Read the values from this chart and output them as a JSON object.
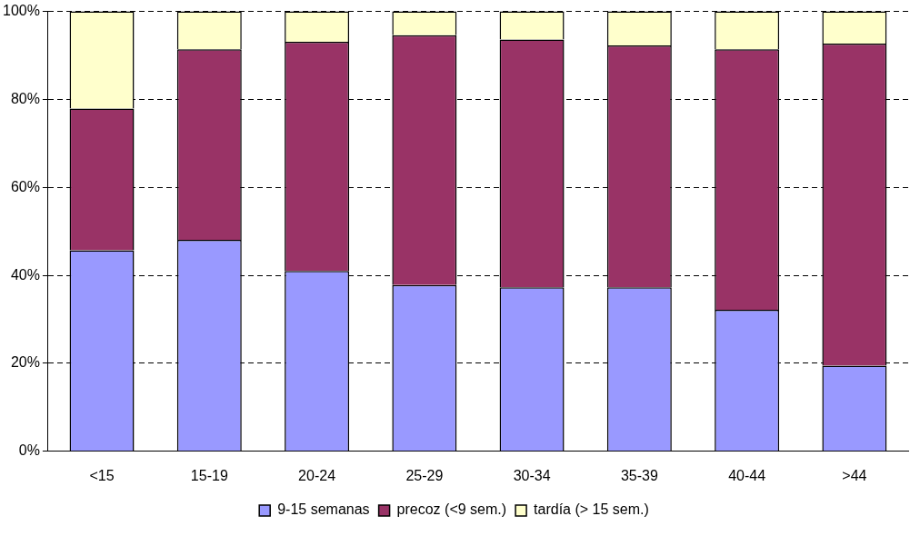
{
  "chart_data": {
    "type": "bar",
    "stacked": true,
    "categories": [
      "<15",
      "15-19",
      "20-24",
      "25-29",
      "30-34",
      "35-39",
      "40-44",
      ">44"
    ],
    "series": [
      {
        "name": "9-15 semanas",
        "color": "#9999ff",
        "values": [
          45.7,
          48.1,
          41.0,
          37.8,
          37.3,
          37.3,
          32.2,
          19.5
        ]
      },
      {
        "name": "precoz (<9 sem.)",
        "color": "#993366",
        "values": [
          32.2,
          43.3,
          52.1,
          56.8,
          56.3,
          55.0,
          59.2,
          73.2
        ]
      },
      {
        "name": "tardía (> 15 sem.)",
        "color": "#ffffcc",
        "values": [
          22.1,
          8.6,
          6.9,
          5.4,
          6.4,
          7.7,
          8.6,
          7.3
        ]
      }
    ],
    "ylim": [
      0,
      100
    ],
    "yticks": [
      {
        "value": 0,
        "label": "0%"
      },
      {
        "value": 20,
        "label": "20%"
      },
      {
        "value": 40,
        "label": "40%"
      },
      {
        "value": 60,
        "label": "60%"
      },
      {
        "value": 80,
        "label": "80%"
      },
      {
        "value": 100,
        "label": "100%"
      }
    ],
    "grid": "y",
    "legend": "bottom"
  }
}
